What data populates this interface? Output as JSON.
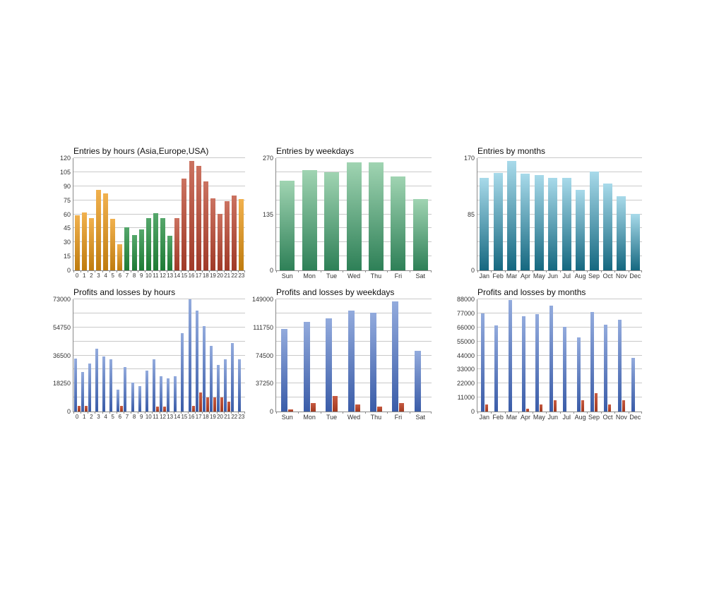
{
  "canvas": {
    "background": "#FFFFFF"
  },
  "palette": {
    "asia_orange": [
      "#F1B14E",
      "#BF7C0F"
    ],
    "europe_green": [
      "#55A76B",
      "#1E7B35"
    ],
    "usa_red": [
      "#CB7260",
      "#A03A28"
    ],
    "weekday_green": [
      "#A0D4B2",
      "#2E8057"
    ],
    "month_teal": [
      "#A8DAEA",
      "#156880"
    ],
    "profit_blue": [
      "#93ABDD",
      "#3A5CA8"
    ],
    "loss_red": [
      "#C75B42",
      "#A23920"
    ]
  },
  "chart_data": [
    {
      "id": "entries-by-hours",
      "type": "bar",
      "title": "Entries by hours (Asia,Europe,USA)",
      "categories": [
        "0",
        "1",
        "2",
        "3",
        "4",
        "5",
        "6",
        "7",
        "8",
        "9",
        "10",
        "11",
        "12",
        "13",
        "14",
        "15",
        "16",
        "17",
        "18",
        "19",
        "20",
        "21",
        "22",
        "23"
      ],
      "values": [
        59,
        62,
        56,
        86,
        82,
        55,
        28,
        46,
        38,
        44,
        56,
        61,
        56,
        37,
        56,
        98,
        117,
        112,
        95,
        77,
        60,
        74,
        80,
        76
      ],
      "color_keys": [
        "asia_orange",
        "asia_orange",
        "asia_orange",
        "asia_orange",
        "asia_orange",
        "asia_orange",
        "asia_orange",
        "europe_green",
        "europe_green",
        "europe_green",
        "europe_green",
        "europe_green",
        "europe_green",
        "europe_green",
        "usa_red",
        "usa_red",
        "usa_red",
        "usa_red",
        "usa_red",
        "usa_red",
        "usa_red",
        "usa_red",
        "usa_red",
        "asia_orange"
      ],
      "ymax": 120,
      "yticks": [
        0,
        15,
        30,
        45,
        60,
        75,
        90,
        105,
        120
      ],
      "gridlines": 8,
      "grid": true,
      "legend": "none"
    },
    {
      "id": "entries-by-weekdays",
      "type": "bar",
      "title": "Entries by weekdays",
      "categories": [
        "Sun",
        "Mon",
        "Tue",
        "Wed",
        "Thu",
        "Fri",
        "Sat"
      ],
      "values": [
        215,
        241,
        236,
        260,
        260,
        226,
        172
      ],
      "color_keys": [
        "weekday_green",
        "weekday_green",
        "weekday_green",
        "weekday_green",
        "weekday_green",
        "weekday_green",
        "weekday_green"
      ],
      "ymax": 270,
      "yticks": [
        0,
        135,
        270
      ],
      "gridlines": 8,
      "grid": true,
      "legend": "none"
    },
    {
      "id": "entries-by-months",
      "type": "bar",
      "title": "Entries by months",
      "categories": [
        "Jan",
        "Feb",
        "Mar",
        "Apr",
        "May",
        "Jun",
        "Jul",
        "Aug",
        "Sep",
        "Oct",
        "Nov",
        "Dec"
      ],
      "values": [
        140,
        148,
        166,
        147,
        144,
        140,
        140,
        122,
        150,
        132,
        112,
        85
      ],
      "color_keys": [
        "month_teal",
        "month_teal",
        "month_teal",
        "month_teal",
        "month_teal",
        "month_teal",
        "month_teal",
        "month_teal",
        "month_teal",
        "month_teal",
        "month_teal",
        "month_teal"
      ],
      "ymax": 170,
      "yticks": [
        0,
        85,
        170
      ],
      "gridlines": 8,
      "grid": true,
      "legend": "none"
    },
    {
      "id": "profits-and-losses-by-hours",
      "type": "bar",
      "title": "Profits and losses by hours",
      "categories": [
        "0",
        "1",
        "2",
        "3",
        "4",
        "5",
        "6",
        "7",
        "8",
        "9",
        "10",
        "11",
        "12",
        "13",
        "14",
        "15",
        "16",
        "17",
        "18",
        "19",
        "20",
        "21",
        "22",
        "23"
      ],
      "series": [
        {
          "name": "profit",
          "color_key": "profit_blue",
          "values": [
            34500,
            25500,
            31000,
            41000,
            36000,
            33800,
            14400,
            28800,
            18800,
            16400,
            26800,
            34200,
            22900,
            21400,
            22900,
            50800,
            72800,
            65500,
            55500,
            42800,
            30400,
            34200,
            44600,
            33800
          ]
        },
        {
          "name": "loss",
          "color_key": "loss_red",
          "values": [
            3600,
            3700,
            0,
            0,
            0,
            0,
            3800,
            0,
            0,
            0,
            0,
            3300,
            3300,
            0,
            0,
            0,
            3500,
            12600,
            9200,
            9400,
            9400,
            6300,
            0,
            0
          ]
        }
      ],
      "ymax": 73000,
      "yticks": [
        0,
        18250,
        36500,
        54750,
        73000
      ],
      "gridlines": 8,
      "grid": true,
      "legend": "none"
    },
    {
      "id": "profits-and-losses-by-weekdays",
      "type": "bar",
      "title": "Profits and losses by weekdays",
      "categories": [
        "Sun",
        "Mon",
        "Tue",
        "Wed",
        "Thu",
        "Fri",
        "Sat"
      ],
      "series": [
        {
          "name": "profit",
          "color_key": "profit_blue",
          "values": [
            110000,
            119000,
            124000,
            134000,
            131500,
            146500,
            81000
          ]
        },
        {
          "name": "loss",
          "color_key": "loss_red",
          "values": [
            2500,
            11600,
            20500,
            9100,
            6300,
            11600,
            0
          ]
        }
      ],
      "ymax": 149000,
      "yticks": [
        0,
        37250,
        74500,
        111750,
        149000
      ],
      "gridlines": 8,
      "grid": true,
      "legend": "none"
    },
    {
      "id": "profits-and-losses-by-months",
      "type": "bar",
      "title": "Profits and losses by months",
      "categories": [
        "Jan",
        "Feb",
        "Mar",
        "Apr",
        "May",
        "Jun",
        "Jul",
        "Aug",
        "Sep",
        "Oct",
        "Nov",
        "Dec"
      ],
      "series": [
        {
          "name": "profit",
          "color_key": "profit_blue",
          "values": [
            77000,
            67500,
            87500,
            74900,
            76400,
            83100,
            66200,
            58200,
            77900,
            67900,
            72200,
            41800
          ]
        },
        {
          "name": "loss",
          "color_key": "loss_red",
          "values": [
            5400,
            0,
            0,
            2400,
            5400,
            8600,
            0,
            8600,
            14600,
            5400,
            8600,
            0
          ]
        }
      ],
      "ymax": 88000,
      "yticks": [
        0,
        11000,
        22000,
        33000,
        44000,
        55000,
        66000,
        77000,
        88000
      ],
      "gridlines": 8,
      "grid": true,
      "legend": "none"
    }
  ]
}
